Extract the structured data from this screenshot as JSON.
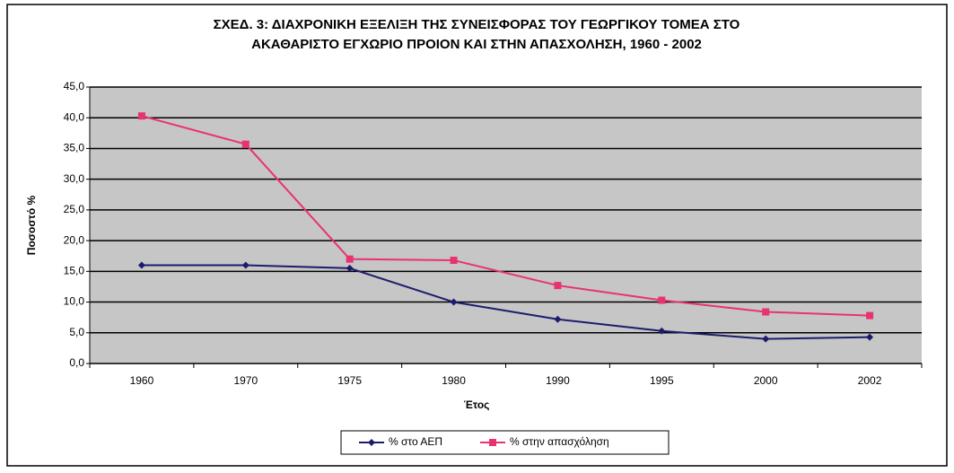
{
  "chart_data": {
    "type": "line",
    "title": [
      "ΣΧΕΔ. 3: ΔΙΑΧΡΟΝΙΚΗ ΕΞΕΛΙΞΗ ΤΗΣ ΣΥΝΕΙΣΦΟΡΑΣ ΤΟΥ ΓΕΩΡΓΙΚΟΥ ΤΟΜΕΑ ΣΤΟ",
      "ΑΚΑΘΑΡΙΣΤΟ ΕΓΧΩΡΙΟ ΠΡΟΙΟΝ ΚΑΙ ΣΤΗΝ ΑΠΑΣΧΟΛΗΣΗ, 1960 - 2002"
    ],
    "x_label": "Έτος",
    "y_label": "Ποσοστό %",
    "categories": [
      "1960",
      "1970",
      "1975",
      "1980",
      "1990",
      "1995",
      "2000",
      "2002"
    ],
    "series": [
      {
        "name": "% στο ΑΕΠ",
        "color": "#1c1c6e",
        "marker": "diamond",
        "values": [
          16.0,
          16.0,
          15.5,
          10.0,
          7.2,
          5.3,
          4.0,
          4.3
        ]
      },
      {
        "name": "% στην απασχόληση",
        "color": "#e8336f",
        "marker": "square",
        "values": [
          40.3,
          35.7,
          17.0,
          16.8,
          12.7,
          10.3,
          8.4,
          7.8
        ]
      }
    ],
    "ylim": [
      0,
      45
    ],
    "yticks": [
      {
        "value": 0,
        "label": "0,0"
      },
      {
        "value": 5,
        "label": "5,0"
      },
      {
        "value": 10,
        "label": "10,0"
      },
      {
        "value": 15,
        "label": "15,0"
      },
      {
        "value": 20,
        "label": "20,0"
      },
      {
        "value": 25,
        "label": "25,0"
      },
      {
        "value": 30,
        "label": "30,0"
      },
      {
        "value": 35,
        "label": "35,0"
      },
      {
        "value": 40,
        "label": "40,0"
      },
      {
        "value": 45,
        "label": "45,0"
      }
    ],
    "grid": true,
    "legend": "bottom"
  }
}
